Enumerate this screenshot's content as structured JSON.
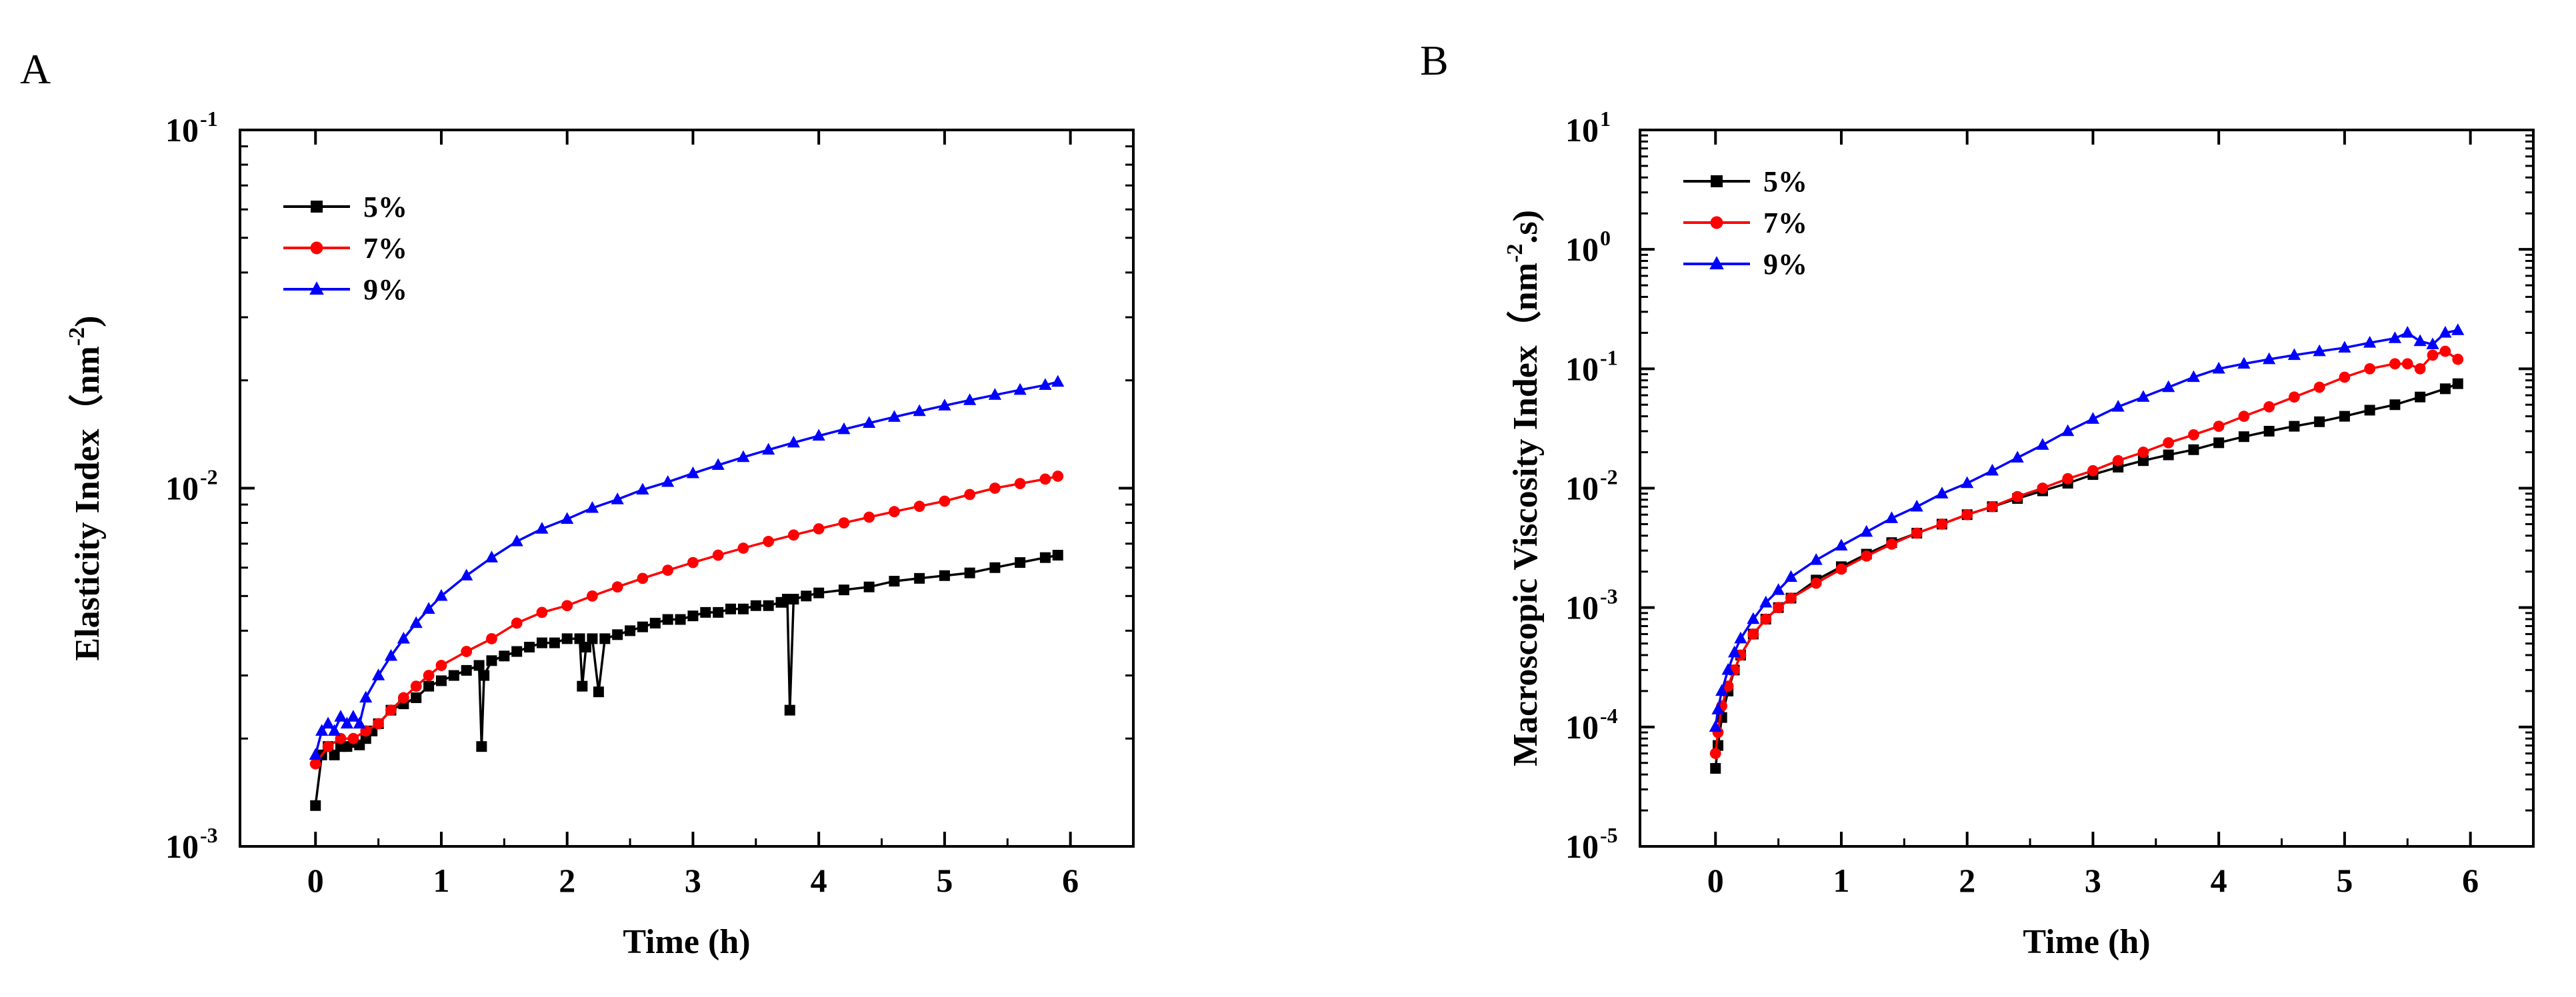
{
  "chart_data": [
    {
      "panel": "A",
      "type": "line",
      "xlabel": "Time (h)",
      "ylabel_main": "Elasticity Index（nm",
      "ylabel_exp": "-2",
      "ylabel_end": ")",
      "yscale": "log",
      "xlim": [
        -0.6,
        6.5
      ],
      "ylim": [
        0.001,
        0.1
      ],
      "x_ticks": [
        {
          "value": 0,
          "label": "0"
        },
        {
          "value": 1,
          "label": "1"
        },
        {
          "value": 2,
          "label": "2"
        },
        {
          "value": 3,
          "label": "3"
        },
        {
          "value": 4,
          "label": "4"
        },
        {
          "value": 5,
          "label": "5"
        },
        {
          "value": 6,
          "label": "6"
        }
      ],
      "y_ticks": [
        {
          "value": 0.001,
          "base": "10",
          "exp": "-3"
        },
        {
          "value": 0.01,
          "base": "10",
          "exp": "-2"
        },
        {
          "value": 0.1,
          "base": "10",
          "exp": "-1"
        }
      ],
      "legend_position": "top-left",
      "series": [
        {
          "name": "5%",
          "color": "#000000",
          "marker": "square",
          "x": [
            0,
            0.05,
            0.1,
            0.15,
            0.2,
            0.25,
            0.3,
            0.35,
            0.4,
            0.45,
            0.5,
            0.6,
            0.7,
            0.8,
            0.9,
            1.0,
            1.1,
            1.2,
            1.3,
            1.32,
            1.34,
            1.4,
            1.5,
            1.6,
            1.7,
            1.8,
            1.9,
            2.0,
            2.1,
            2.12,
            2.15,
            2.2,
            2.25,
            2.3,
            2.4,
            2.5,
            2.6,
            2.7,
            2.8,
            2.9,
            3.0,
            3.1,
            3.2,
            3.3,
            3.4,
            3.5,
            3.6,
            3.7,
            3.75,
            3.77,
            3.8,
            3.9,
            4.0,
            4.2,
            4.4,
            4.6,
            4.8,
            5.0,
            5.2,
            5.4,
            5.6,
            5.8,
            5.9
          ],
          "y": [
            0.0013,
            0.0018,
            0.0019,
            0.0018,
            0.0019,
            0.0019,
            0.00195,
            0.00192,
            0.002,
            0.0021,
            0.0022,
            0.0024,
            0.0025,
            0.0026,
            0.0028,
            0.0029,
            0.003,
            0.0031,
            0.0032,
            0.0019,
            0.003,
            0.0033,
            0.0034,
            0.0035,
            0.0036,
            0.0037,
            0.0037,
            0.0038,
            0.0038,
            0.0028,
            0.0036,
            0.0038,
            0.0027,
            0.0038,
            0.0039,
            0.004,
            0.0041,
            0.0042,
            0.0043,
            0.0043,
            0.0044,
            0.0045,
            0.0045,
            0.0046,
            0.0046,
            0.0047,
            0.0047,
            0.0048,
            0.0049,
            0.0024,
            0.0049,
            0.005,
            0.0051,
            0.0052,
            0.0053,
            0.0055,
            0.0056,
            0.0057,
            0.0058,
            0.006,
            0.0062,
            0.0064,
            0.0065
          ]
        },
        {
          "name": "7%",
          "color": "#ff0000",
          "marker": "circle",
          "x": [
            0,
            0.1,
            0.2,
            0.3,
            0.4,
            0.5,
            0.6,
            0.7,
            0.8,
            0.9,
            1.0,
            1.2,
            1.4,
            1.6,
            1.8,
            2.0,
            2.2,
            2.4,
            2.6,
            2.8,
            3.0,
            3.2,
            3.4,
            3.6,
            3.8,
            4.0,
            4.2,
            4.4,
            4.6,
            4.8,
            5.0,
            5.2,
            5.4,
            5.6,
            5.8,
            5.9
          ],
          "y": [
            0.0017,
            0.0019,
            0.002,
            0.002,
            0.0021,
            0.0022,
            0.0024,
            0.0026,
            0.0028,
            0.003,
            0.0032,
            0.0035,
            0.0038,
            0.0042,
            0.0045,
            0.0047,
            0.005,
            0.0053,
            0.0056,
            0.0059,
            0.0062,
            0.0065,
            0.0068,
            0.0071,
            0.0074,
            0.0077,
            0.008,
            0.0083,
            0.0086,
            0.0089,
            0.0092,
            0.0096,
            0.01,
            0.0103,
            0.0106,
            0.0108
          ]
        },
        {
          "name": "9%",
          "color": "#0000ff",
          "marker": "triangle",
          "x": [
            0,
            0.05,
            0.1,
            0.15,
            0.2,
            0.25,
            0.3,
            0.35,
            0.4,
            0.5,
            0.6,
            0.7,
            0.8,
            0.9,
            1.0,
            1.2,
            1.4,
            1.6,
            1.8,
            2.0,
            2.2,
            2.4,
            2.6,
            2.8,
            3.0,
            3.2,
            3.4,
            3.6,
            3.8,
            4.0,
            4.2,
            4.4,
            4.6,
            4.8,
            5.0,
            5.2,
            5.4,
            5.6,
            5.8,
            5.9
          ],
          "y": [
            0.0018,
            0.0021,
            0.0022,
            0.0021,
            0.0023,
            0.0022,
            0.0023,
            0.0022,
            0.0026,
            0.003,
            0.0034,
            0.0038,
            0.0042,
            0.0046,
            0.005,
            0.0057,
            0.0064,
            0.0071,
            0.0077,
            0.0082,
            0.0088,
            0.0093,
            0.0099,
            0.0104,
            0.011,
            0.0116,
            0.0122,
            0.0128,
            0.0134,
            0.014,
            0.0146,
            0.0152,
            0.0158,
            0.0164,
            0.017,
            0.0176,
            0.0182,
            0.0188,
            0.0194,
            0.0198
          ]
        }
      ]
    },
    {
      "panel": "B",
      "type": "line",
      "xlabel": "Time (h)",
      "ylabel_main": "Macroscopic Viscosity Index（nm",
      "ylabel_exp": "-2",
      "ylabel_end": ".s)",
      "yscale": "log",
      "xlim": [
        -0.6,
        6.5
      ],
      "ylim": [
        1e-05,
        10
      ],
      "x_ticks": [
        {
          "value": 0,
          "label": "0"
        },
        {
          "value": 1,
          "label": "1"
        },
        {
          "value": 2,
          "label": "2"
        },
        {
          "value": 3,
          "label": "3"
        },
        {
          "value": 4,
          "label": "4"
        },
        {
          "value": 5,
          "label": "5"
        },
        {
          "value": 6,
          "label": "6"
        }
      ],
      "y_ticks": [
        {
          "value": 1e-05,
          "base": "10",
          "exp": "-5"
        },
        {
          "value": 0.0001,
          "base": "10",
          "exp": "-4"
        },
        {
          "value": 0.001,
          "base": "10",
          "exp": "-3"
        },
        {
          "value": 0.01,
          "base": "10",
          "exp": "-2"
        },
        {
          "value": 0.1,
          "base": "10",
          "exp": "-1"
        },
        {
          "value": 1,
          "base": "10",
          "exp": "0"
        },
        {
          "value": 10,
          "base": "10",
          "exp": "1"
        }
      ],
      "legend_position": "top-left",
      "series": [
        {
          "name": "5%",
          "color": "#000000",
          "marker": "square",
          "x": [
            0,
            0.02,
            0.05,
            0.1,
            0.15,
            0.2,
            0.3,
            0.4,
            0.5,
            0.6,
            0.8,
            1.0,
            1.2,
            1.4,
            1.6,
            1.8,
            2.0,
            2.2,
            2.4,
            2.6,
            2.8,
            3.0,
            3.2,
            3.4,
            3.6,
            3.8,
            4.0,
            4.2,
            4.4,
            4.6,
            4.8,
            5.0,
            5.2,
            5.4,
            5.6,
            5.8,
            5.9
          ],
          "y": [
            4.5e-05,
            7e-05,
            0.00012,
            0.0002,
            0.0003,
            0.0004,
            0.0006,
            0.0008,
            0.001,
            0.0012,
            0.0017,
            0.0022,
            0.0028,
            0.0035,
            0.0042,
            0.005,
            0.006,
            0.007,
            0.0082,
            0.0095,
            0.011,
            0.013,
            0.015,
            0.017,
            0.019,
            0.021,
            0.024,
            0.027,
            0.03,
            0.033,
            0.036,
            0.04,
            0.045,
            0.05,
            0.058,
            0.068,
            0.075
          ]
        },
        {
          "name": "7%",
          "color": "#ff0000",
          "marker": "circle",
          "x": [
            0,
            0.02,
            0.05,
            0.1,
            0.15,
            0.2,
            0.3,
            0.4,
            0.5,
            0.6,
            0.8,
            1.0,
            1.2,
            1.4,
            1.6,
            1.8,
            2.0,
            2.2,
            2.4,
            2.6,
            2.8,
            3.0,
            3.2,
            3.4,
            3.6,
            3.8,
            4.0,
            4.2,
            4.4,
            4.6,
            4.8,
            5.0,
            5.2,
            5.4,
            5.5,
            5.6,
            5.7,
            5.8,
            5.9
          ],
          "y": [
            6e-05,
            9e-05,
            0.00015,
            0.00022,
            0.0003,
            0.0004,
            0.0006,
            0.0008,
            0.001,
            0.0012,
            0.0016,
            0.0021,
            0.0027,
            0.0034,
            0.0042,
            0.005,
            0.006,
            0.007,
            0.0085,
            0.01,
            0.012,
            0.014,
            0.017,
            0.02,
            0.024,
            0.028,
            0.033,
            0.04,
            0.048,
            0.058,
            0.07,
            0.085,
            0.1,
            0.11,
            0.11,
            0.1,
            0.13,
            0.14,
            0.12
          ]
        },
        {
          "name": "9%",
          "color": "#0000ff",
          "marker": "triangle",
          "x": [
            0,
            0.02,
            0.05,
            0.1,
            0.15,
            0.2,
            0.3,
            0.4,
            0.5,
            0.6,
            0.8,
            1.0,
            1.2,
            1.4,
            1.6,
            1.8,
            2.0,
            2.2,
            2.4,
            2.6,
            2.8,
            3.0,
            3.2,
            3.4,
            3.6,
            3.8,
            4.0,
            4.2,
            4.4,
            4.6,
            4.8,
            5.0,
            5.2,
            5.4,
            5.5,
            5.6,
            5.7,
            5.8,
            5.9
          ],
          "y": [
            0.0001,
            0.00014,
            0.0002,
            0.0003,
            0.00042,
            0.00055,
            0.0008,
            0.0011,
            0.0014,
            0.0018,
            0.0025,
            0.0033,
            0.0043,
            0.0056,
            0.007,
            0.009,
            0.011,
            0.014,
            0.018,
            0.023,
            0.03,
            0.038,
            0.048,
            0.058,
            0.07,
            0.085,
            0.1,
            0.11,
            0.12,
            0.13,
            0.14,
            0.15,
            0.165,
            0.18,
            0.2,
            0.17,
            0.16,
            0.2,
            0.21
          ]
        }
      ]
    }
  ]
}
